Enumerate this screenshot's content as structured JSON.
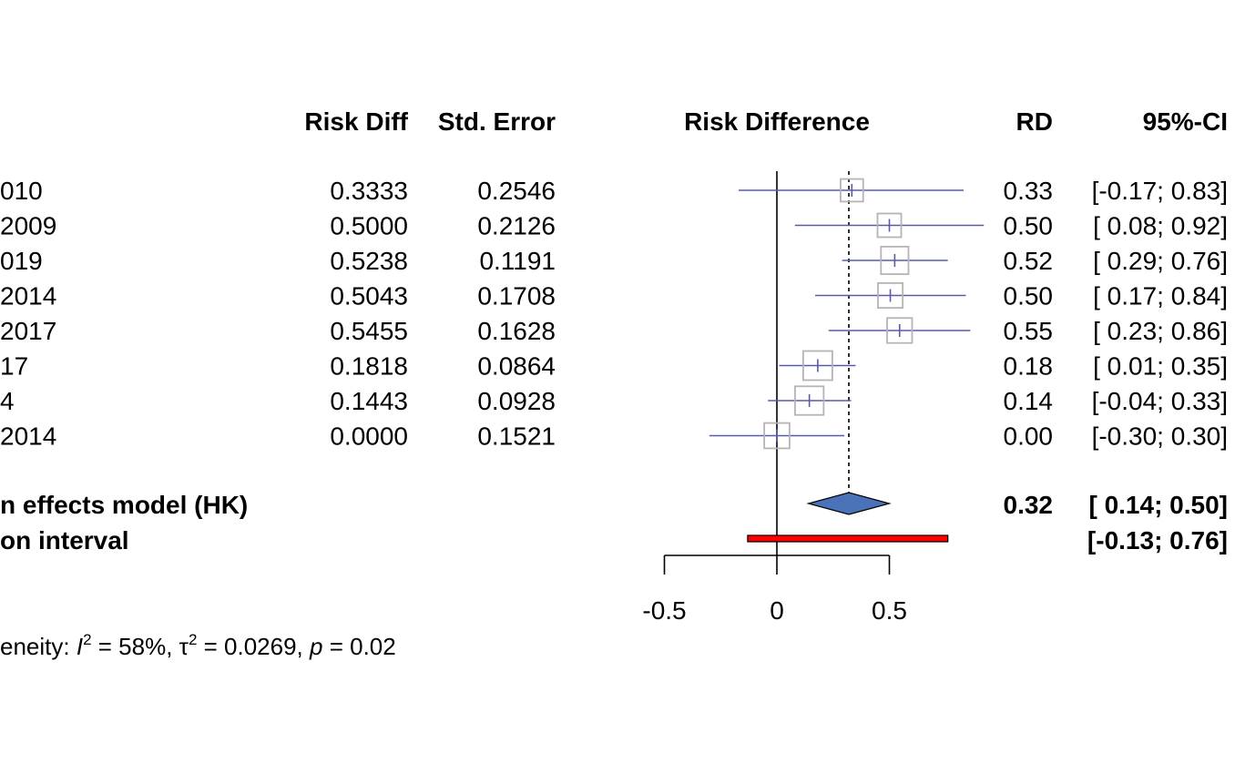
{
  "chart_data": {
    "type": "forest",
    "headers": {
      "risk_diff": "Risk Diff",
      "std_error": "Std. Error",
      "plot": "Risk Difference",
      "rd": "RD",
      "ci": "95%-CI"
    },
    "studies": [
      {
        "label": "010",
        "risk_diff": "0.3333",
        "std_error": "0.2546",
        "rd": "0.33",
        "ci": "[-0.17; 0.83]",
        "est": 0.3333,
        "lower": -0.17,
        "upper": 0.83,
        "weight": 0.4
      },
      {
        "label": "2009",
        "risk_diff": "0.5000",
        "std_error": "0.2126",
        "rd": "0.50",
        "ci": "[ 0.08; 0.92]",
        "est": 0.5,
        "lower": 0.08,
        "upper": 0.92,
        "weight": 0.5
      },
      {
        "label": "019",
        "risk_diff": "0.5238",
        "std_error": "0.1191",
        "rd": "0.52",
        "ci": "[ 0.29; 0.76]",
        "est": 0.5238,
        "lower": 0.29,
        "upper": 0.76,
        "weight": 0.85
      },
      {
        "label": "2014",
        "risk_diff": "0.5043",
        "std_error": "0.1708",
        "rd": "0.50",
        "ci": "[ 0.17; 0.84]",
        "est": 0.5043,
        "lower": 0.17,
        "upper": 0.84,
        "weight": 0.6
      },
      {
        "label": "2017",
        "risk_diff": "0.5455",
        "std_error": "0.1628",
        "rd": "0.55",
        "ci": "[ 0.23; 0.86]",
        "est": 0.5455,
        "lower": 0.23,
        "upper": 0.86,
        "weight": 0.62
      },
      {
        "label": "17",
        "risk_diff": "0.1818",
        "std_error": "0.0864",
        "rd": "0.18",
        "ci": "[ 0.01; 0.35]",
        "est": 0.1818,
        "lower": 0.01,
        "upper": 0.35,
        "weight": 1.0
      },
      {
        "label": "4",
        "risk_diff": "0.1443",
        "std_error": "0.0928",
        "rd": "0.14",
        "ci": "[-0.04; 0.33]",
        "est": 0.1443,
        "lower": -0.04,
        "upper": 0.33,
        "weight": 0.95
      },
      {
        "label": "2014",
        "risk_diff": "0.0000",
        "std_error": "0.1521",
        "rd": "0.00",
        "ci": "[-0.30; 0.30]",
        "est": 0.0,
        "lower": -0.3,
        "upper": 0.3,
        "weight": 0.65
      }
    ],
    "pooled": {
      "label": "n effects model (HK)",
      "rd": "0.32",
      "ci": "[ 0.14; 0.50]",
      "est": 0.32,
      "lower": 0.14,
      "upper": 0.5
    },
    "prediction": {
      "label": "on interval",
      "ci": "[-0.13; 0.76]",
      "lower": -0.13,
      "upper": 0.76
    },
    "heterogeneity": {
      "prefix": "eneity: ",
      "i2_symbol": "I",
      "i2_value": " = 58%, ",
      "tau_symbol": "τ",
      "tau_value": " = 0.0269, ",
      "p_symbol": "p",
      "p_value": " = 0.02",
      "sup": "2"
    },
    "x_axis": {
      "ticks": [
        -0.5,
        0,
        0.5
      ],
      "tick_labels": [
        "-0.5",
        "0",
        "0.5"
      ],
      "range": [
        -0.5,
        0.5
      ],
      "null_line": 0,
      "pooled_reference_line": 0.32
    },
    "colors": {
      "ci_line": "#5a5aa8",
      "square": "#b5b5b5",
      "diamond": "#4a72b8",
      "prediction": "#ff0000"
    }
  }
}
